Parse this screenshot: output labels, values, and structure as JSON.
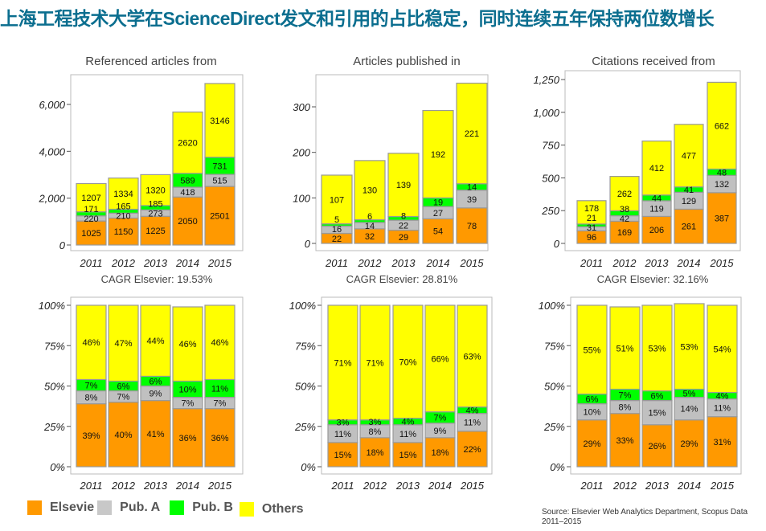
{
  "title": "上海工程技术大学在ScienceDirect发文和引用的占比稳定，同时连续五年保持两位数增长",
  "legend": [
    {
      "name": "Elsevier",
      "label": "Elsevie",
      "color": "#FF9900"
    },
    {
      "name": "Pub. A",
      "label": "Pub. A",
      "color": "#C0C0C0"
    },
    {
      "name": "Pub. B",
      "label": "Pub. B",
      "color": "#00FF00"
    },
    {
      "name": "Others",
      "label": "Others",
      "color": "#FFFF00"
    }
  ],
  "source": "Source: Elsevier Web Analytics Department, Scopus Data 2011–2015",
  "chart_data": [
    {
      "type": "bar",
      "stacked": true,
      "title": "Referenced articles from",
      "footer": "CAGR Elsevier: 19.53%",
      "categories": [
        "2011",
        "2012",
        "2013",
        "2014",
        "2015"
      ],
      "ylim": [
        0,
        7300
      ],
      "yticks": [
        {
          "v": 0,
          "l": "0"
        },
        {
          "v": 2000,
          "l": "2,000"
        },
        {
          "v": 4000,
          "l": "4,000"
        },
        {
          "v": 6000,
          "l": "6,000"
        }
      ],
      "series": [
        {
          "name": "Elsevier",
          "values": [
            1025,
            1150,
            1225,
            2050,
            2501
          ]
        },
        {
          "name": "Pub. A",
          "values": [
            220,
            210,
            273,
            418,
            515
          ]
        },
        {
          "name": "Pub. B",
          "values": [
            171,
            165,
            185,
            589,
            731
          ]
        },
        {
          "name": "Others",
          "values": [
            1207,
            1334,
            1320,
            2620,
            3146
          ]
        }
      ]
    },
    {
      "type": "bar",
      "stacked": true,
      "title": "Articles published in",
      "footer": "CAGR Elsevier: 28.81%",
      "categories": [
        "2011",
        "2012",
        "2013",
        "2014",
        "2015"
      ],
      "ylim": [
        0,
        360
      ],
      "yticks": [
        {
          "v": 0,
          "l": "0"
        },
        {
          "v": 100,
          "l": "100"
        },
        {
          "v": 200,
          "l": "200"
        },
        {
          "v": 300,
          "l": "300"
        }
      ],
      "series": [
        {
          "name": "Elsevier",
          "values": [
            22,
            32,
            29,
            54,
            78
          ]
        },
        {
          "name": "Pub. A",
          "values": [
            16,
            14,
            22,
            27,
            39
          ]
        },
        {
          "name": "Pub. B",
          "values": [
            5,
            6,
            8,
            19,
            14
          ]
        },
        {
          "name": "Others",
          "values": [
            107,
            130,
            139,
            192,
            221
          ]
        }
      ]
    },
    {
      "type": "bar",
      "stacked": true,
      "title": "Citations received from",
      "footer": "CAGR Elsevier: 32.16%",
      "categories": [
        "2011",
        "2012",
        "2013",
        "2014",
        "2015"
      ],
      "ylim": [
        0,
        1275
      ],
      "yticks": [
        {
          "v": 0,
          "l": "0"
        },
        {
          "v": 250,
          "l": "250"
        },
        {
          "v": 500,
          "l": "500"
        },
        {
          "v": 750,
          "l": "750"
        },
        {
          "v": 1000,
          "l": "1,000"
        },
        {
          "v": 1250,
          "l": "1,250"
        }
      ],
      "series": [
        {
          "name": "Elsevier",
          "values": [
            96,
            169,
            206,
            261,
            387
          ]
        },
        {
          "name": "Pub. A",
          "values": [
            31,
            42,
            119,
            129,
            132
          ]
        },
        {
          "name": "Pub. B",
          "values": [
            21,
            38,
            44,
            41,
            48
          ]
        },
        {
          "name": "Others",
          "values": [
            178,
            262,
            412,
            477,
            662
          ]
        }
      ]
    },
    {
      "type": "bar",
      "stacked": true,
      "percent": true,
      "categories": [
        "2011",
        "2012",
        "2013",
        "2014",
        "2015"
      ],
      "ylim": [
        0,
        100
      ],
      "yticks": [
        {
          "v": 0,
          "l": "0%"
        },
        {
          "v": 25,
          "l": "25%"
        },
        {
          "v": 50,
          "l": "50%"
        },
        {
          "v": 75,
          "l": "75%"
        },
        {
          "v": 100,
          "l": "100%"
        }
      ],
      "series": [
        {
          "name": "Elsevier",
          "values": [
            39,
            40,
            41,
            36,
            36
          ]
        },
        {
          "name": "Pub. A",
          "values": [
            8,
            7,
            9,
            7,
            7
          ]
        },
        {
          "name": "Pub. B",
          "values": [
            7,
            6,
            6,
            10,
            11
          ]
        },
        {
          "name": "Others",
          "values": [
            46,
            47,
            44,
            46,
            46
          ]
        }
      ]
    },
    {
      "type": "bar",
      "stacked": true,
      "percent": true,
      "categories": [
        "2011",
        "2012",
        "2013",
        "2014",
        "2015"
      ],
      "ylim": [
        0,
        100
      ],
      "yticks": [
        {
          "v": 0,
          "l": "0%"
        },
        {
          "v": 25,
          "l": "25%"
        },
        {
          "v": 50,
          "l": "50%"
        },
        {
          "v": 75,
          "l": "75%"
        },
        {
          "v": 100,
          "l": "100%"
        }
      ],
      "series": [
        {
          "name": "Elsevier",
          "values": [
            15,
            18,
            15,
            18,
            22
          ]
        },
        {
          "name": "Pub. A",
          "values": [
            11,
            8,
            11,
            9,
            11
          ]
        },
        {
          "name": "Pub. B",
          "values": [
            3,
            3,
            4,
            7,
            4
          ]
        },
        {
          "name": "Others",
          "values": [
            71,
            71,
            70,
            66,
            63
          ]
        }
      ]
    },
    {
      "type": "bar",
      "stacked": true,
      "percent": true,
      "categories": [
        "2011",
        "2012",
        "2013",
        "2014",
        "2015"
      ],
      "ylim": [
        0,
        100
      ],
      "yticks": [
        {
          "v": 0,
          "l": "0%"
        },
        {
          "v": 25,
          "l": "25%"
        },
        {
          "v": 50,
          "l": "50%"
        },
        {
          "v": 75,
          "l": "75%"
        },
        {
          "v": 100,
          "l": "100%"
        }
      ],
      "series": [
        {
          "name": "Elsevier",
          "values": [
            29,
            33,
            26,
            29,
            31
          ]
        },
        {
          "name": "Pub. A",
          "values": [
            10,
            8,
            15,
            14,
            11
          ]
        },
        {
          "name": "Pub. B",
          "values": [
            6,
            7,
            6,
            5,
            4
          ]
        },
        {
          "name": "Others",
          "values": [
            55,
            51,
            53,
            53,
            54
          ]
        }
      ]
    }
  ]
}
